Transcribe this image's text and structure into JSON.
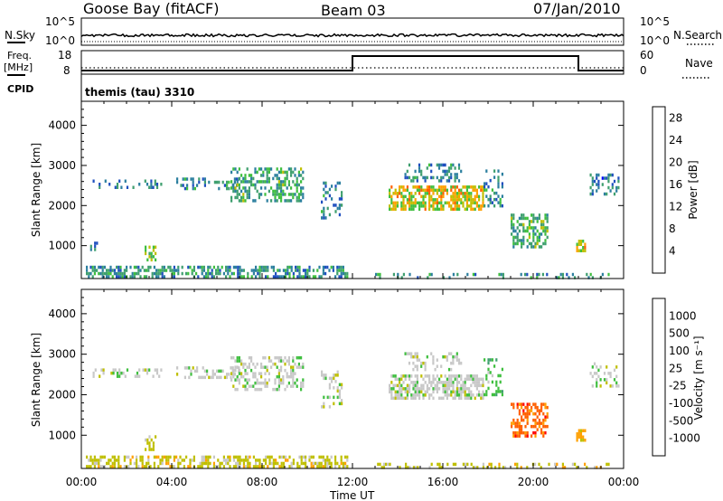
{
  "header": {
    "station": "Goose Bay (fitACF)",
    "beam": "Beam 03",
    "date": "07/Jan/2010"
  },
  "nsky_strip": {
    "left_label": "N.Sky",
    "right_label": "N.Search",
    "left_ticks": [
      "10^5",
      "10^0"
    ],
    "right_ticks": [
      "10^5",
      "10^0"
    ]
  },
  "freq_strip": {
    "left_label_line1": "Freq.",
    "left_label_line2": "[MHz]",
    "right_label": "Nave",
    "left_ticks": [
      "18",
      "8"
    ],
    "right_ticks": [
      "60",
      "0"
    ],
    "cpid_label": "CPID",
    "cpid_text": "themis (tau) 3310",
    "freq_step": {
      "low_until_hour": 12.0,
      "high_until_hour": 22.0
    }
  },
  "colors": {
    "power_scale": [
      "#0000ff",
      "#1f4fbf",
      "#2c7f9f",
      "#3f9f6f",
      "#3fbf3f",
      "#bfbf00",
      "#ffa000",
      "#ff6000",
      "#ff0000"
    ],
    "velocity_scale": [
      "#ff0000",
      "#ff6000",
      "#ffa000",
      "#bfbf00",
      "#c8c8c8",
      "#3fbf3f",
      "#3f9f6f",
      "#1f4fbf",
      "#0000ff"
    ]
  },
  "chart_data": [
    {
      "type": "heatmap",
      "title": "",
      "xlabel": "",
      "ylabel": "Slant Range [km]",
      "xlim": [
        0,
        24
      ],
      "ylim": [
        180,
        4600
      ],
      "yticks": [
        "1000",
        "2000",
        "3000",
        "4000"
      ],
      "colorbar": {
        "label": "Power [dB]",
        "ticks": [
          "4",
          "8",
          "12",
          "16",
          "20",
          "24",
          "28"
        ],
        "range": [
          0,
          30
        ]
      },
      "regions": [
        {
          "t_start": 0.2,
          "t_end": 11.8,
          "r_low": 200,
          "r_high": 500,
          "level": 10,
          "density": 0.55
        },
        {
          "t_start": 0.5,
          "t_end": 3.5,
          "r_low": 2450,
          "r_high": 2650,
          "level": 8,
          "density": 0.25
        },
        {
          "t_start": 4.2,
          "t_end": 7.0,
          "r_low": 2400,
          "r_high": 2700,
          "level": 9,
          "density": 0.35
        },
        {
          "t_start": 6.6,
          "t_end": 9.8,
          "r_low": 2150,
          "r_high": 2950,
          "level": 12,
          "density": 0.45
        },
        {
          "t_start": 10.6,
          "t_end": 11.5,
          "r_low": 1700,
          "r_high": 2600,
          "level": 9,
          "density": 0.3
        },
        {
          "t_start": 2.8,
          "t_end": 3.3,
          "r_low": 650,
          "r_high": 1000,
          "level": 14,
          "density": 0.5
        },
        {
          "t_start": 0.3,
          "t_end": 0.8,
          "r_low": 900,
          "r_high": 1100,
          "level": 8,
          "density": 0.3
        },
        {
          "t_start": 13.6,
          "t_end": 17.8,
          "r_low": 1900,
          "r_high": 2500,
          "level": 19,
          "density": 0.65
        },
        {
          "t_start": 14.3,
          "t_end": 16.8,
          "r_low": 2600,
          "r_high": 3050,
          "level": 9,
          "density": 0.3
        },
        {
          "t_start": 17.8,
          "t_end": 18.6,
          "r_low": 2000,
          "r_high": 2900,
          "level": 10,
          "density": 0.3
        },
        {
          "t_start": 19.0,
          "t_end": 20.6,
          "r_low": 950,
          "r_high": 1800,
          "level": 13,
          "density": 0.5
        },
        {
          "t_start": 21.9,
          "t_end": 22.3,
          "r_low": 850,
          "r_high": 1150,
          "level": 20,
          "density": 0.6
        },
        {
          "t_start": 22.5,
          "t_end": 23.8,
          "r_low": 2250,
          "r_high": 2800,
          "level": 8,
          "density": 0.3
        },
        {
          "t_start": 13.0,
          "t_end": 23.5,
          "r_low": 200,
          "r_high": 320,
          "level": 10,
          "density": 0.25
        }
      ]
    },
    {
      "type": "heatmap",
      "title": "",
      "xlabel": "Time UT",
      "ylabel": "Slant Range [km]",
      "xlim": [
        0,
        24
      ],
      "ylim": [
        180,
        4600
      ],
      "xticks": [
        "00:00",
        "04:00",
        "08:00",
        "12:00",
        "16:00",
        "20:00",
        "00:00"
      ],
      "yticks": [
        "1000",
        "2000",
        "3000",
        "4000"
      ],
      "colorbar": {
        "label": "Velocity [m s⁻¹]",
        "ticks": [
          "1000",
          "500",
          "100",
          "25",
          "-25",
          "-100",
          "-500",
          "-1000"
        ]
      },
      "regions": [
        {
          "t_start": 0.2,
          "t_end": 11.8,
          "r_low": 200,
          "r_high": 500,
          "level": 3,
          "density": 0.55
        },
        {
          "t_start": 0.5,
          "t_end": 3.5,
          "r_low": 2450,
          "r_high": 2650,
          "level": 4,
          "density": 0.25
        },
        {
          "t_start": 4.2,
          "t_end": 7.0,
          "r_low": 2400,
          "r_high": 2700,
          "level": 4,
          "density": 0.35
        },
        {
          "t_start": 6.6,
          "t_end": 9.8,
          "r_low": 2150,
          "r_high": 2950,
          "level": 4,
          "density": 0.45
        },
        {
          "t_start": 10.6,
          "t_end": 11.5,
          "r_low": 1700,
          "r_high": 2600,
          "level": 4,
          "density": 0.3
        },
        {
          "t_start": 2.8,
          "t_end": 3.3,
          "r_low": 650,
          "r_high": 1000,
          "level": 3,
          "density": 0.5
        },
        {
          "t_start": 13.6,
          "t_end": 17.8,
          "r_low": 1900,
          "r_high": 2500,
          "level": 4,
          "density": 0.65
        },
        {
          "t_start": 14.3,
          "t_end": 16.8,
          "r_low": 2600,
          "r_high": 3050,
          "level": 4,
          "density": 0.3
        },
        {
          "t_start": 17.8,
          "t_end": 18.6,
          "r_low": 2000,
          "r_high": 2900,
          "level": 5,
          "density": 0.3
        },
        {
          "t_start": 19.0,
          "t_end": 20.6,
          "r_low": 950,
          "r_high": 1800,
          "level": 1,
          "density": 0.5
        },
        {
          "t_start": 21.9,
          "t_end": 22.3,
          "r_low": 850,
          "r_high": 1150,
          "level": 2,
          "density": 0.6
        },
        {
          "t_start": 22.5,
          "t_end": 23.8,
          "r_low": 2250,
          "r_high": 2800,
          "level": 4,
          "density": 0.3
        },
        {
          "t_start": 13.0,
          "t_end": 23.5,
          "r_low": 200,
          "r_high": 320,
          "level": 3,
          "density": 0.25
        }
      ]
    }
  ]
}
